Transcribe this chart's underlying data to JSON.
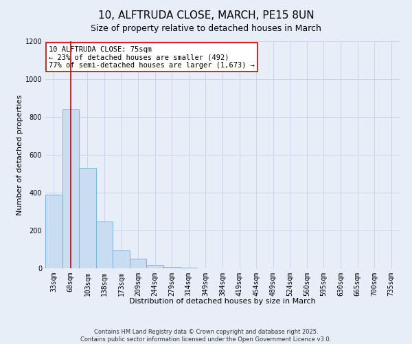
{
  "title": "10, ALFTRUDA CLOSE, MARCH, PE15 8UN",
  "subtitle": "Size of property relative to detached houses in March",
  "xlabel": "Distribution of detached houses by size in March",
  "ylabel": "Number of detached properties",
  "bar_labels": [
    "33sqm",
    "68sqm",
    "103sqm",
    "138sqm",
    "173sqm",
    "209sqm",
    "244sqm",
    "279sqm",
    "314sqm",
    "349sqm",
    "384sqm",
    "419sqm",
    "454sqm",
    "489sqm",
    "524sqm",
    "560sqm",
    "595sqm",
    "630sqm",
    "665sqm",
    "700sqm",
    "735sqm"
  ],
  "bar_values": [
    390,
    840,
    530,
    248,
    95,
    50,
    18,
    8,
    2,
    1,
    0,
    0,
    0,
    0,
    0,
    0,
    0,
    0,
    0,
    0,
    0
  ],
  "bar_color": "#c9ddf2",
  "bar_edge_color": "#6aaed6",
  "bar_edge_width": 0.6,
  "vline_x": 1,
  "vline_color": "#cc0000",
  "annotation_title": "10 ALFTRUDA CLOSE: 75sqm",
  "annotation_line1": "← 23% of detached houses are smaller (492)",
  "annotation_line2": "77% of semi-detached houses are larger (1,673) →",
  "annotation_box_color": "#ffffff",
  "annotation_box_edge_color": "#cc0000",
  "ylim": [
    0,
    1200
  ],
  "yticks": [
    0,
    200,
    400,
    600,
    800,
    1000,
    1200
  ],
  "grid_color": "#c8d4e8",
  "background_color": "#e8eef8",
  "plot_bg_color": "#e8eef8",
  "footnote1": "Contains HM Land Registry data © Crown copyright and database right 2025.",
  "footnote2": "Contains public sector information licensed under the Open Government Licence v3.0.",
  "title_fontsize": 11,
  "subtitle_fontsize": 9,
  "axis_label_fontsize": 8,
  "tick_fontsize": 7,
  "annotation_fontsize": 7.5,
  "footnote_fontsize": 6
}
